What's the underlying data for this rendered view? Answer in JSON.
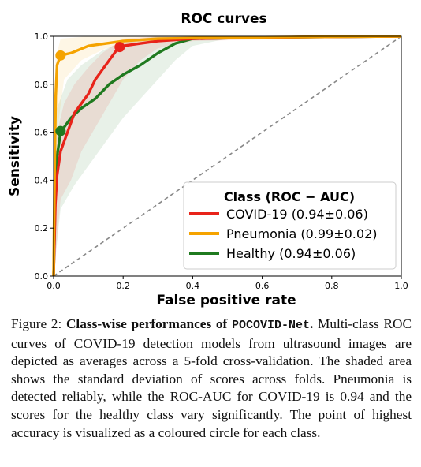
{
  "chart_data": {
    "type": "line",
    "title": "ROC curves",
    "xlabel": "False positive rate",
    "ylabel": "Sensitivity",
    "xlim": [
      0,
      1
    ],
    "ylim": [
      0,
      1
    ],
    "x_ticks": [
      "0.0",
      "0.2",
      "0.4",
      "0.6",
      "0.8",
      "1.0"
    ],
    "y_ticks": [
      "0.0",
      "0.2",
      "0.4",
      "0.6",
      "0.8",
      "1.0"
    ],
    "grid": false,
    "legend": {
      "title": "Class (ROC − AUC)",
      "placement": "lower-right"
    },
    "colors": {
      "covid": "#e8231a",
      "pneumonia": "#f5a300",
      "healthy": "#1f7a1f",
      "diagonal": "#888888"
    },
    "series": [
      {
        "name": "COVID-19 (0.94±0.06)",
        "color": "#e8231a",
        "points": [
          [
            0,
            0
          ],
          [
            0.005,
            0.3
          ],
          [
            0.01,
            0.42
          ],
          [
            0.02,
            0.52
          ],
          [
            0.04,
            0.6
          ],
          [
            0.06,
            0.68
          ],
          [
            0.08,
            0.72
          ],
          [
            0.1,
            0.76
          ],
          [
            0.12,
            0.82
          ],
          [
            0.14,
            0.86
          ],
          [
            0.16,
            0.9
          ],
          [
            0.18,
            0.94
          ],
          [
            0.2,
            0.96
          ],
          [
            0.25,
            0.97
          ],
          [
            0.3,
            0.98
          ],
          [
            0.4,
            0.99
          ],
          [
            0.6,
            0.995
          ],
          [
            1.0,
            1.0
          ]
        ],
        "band_upper": [
          [
            0,
            0.05
          ],
          [
            0.01,
            0.6
          ],
          [
            0.03,
            0.72
          ],
          [
            0.06,
            0.8
          ],
          [
            0.1,
            0.87
          ],
          [
            0.14,
            0.93
          ],
          [
            0.2,
            0.99
          ],
          [
            0.3,
            1.0
          ],
          [
            1.0,
            1.0
          ]
        ],
        "band_lower": [
          [
            0,
            0
          ],
          [
            0.02,
            0.32
          ],
          [
            0.05,
            0.4
          ],
          [
            0.08,
            0.52
          ],
          [
            0.12,
            0.62
          ],
          [
            0.16,
            0.72
          ],
          [
            0.2,
            0.82
          ],
          [
            0.25,
            0.9
          ],
          [
            0.3,
            0.95
          ],
          [
            0.4,
            0.98
          ],
          [
            1.0,
            1.0
          ]
        ],
        "best_point": [
          0.19,
          0.955
        ]
      },
      {
        "name": "Pneumonia (0.99±0.02)",
        "color": "#f5a300",
        "points": [
          [
            0,
            0
          ],
          [
            0.003,
            0.45
          ],
          [
            0.006,
            0.75
          ],
          [
            0.01,
            0.88
          ],
          [
            0.02,
            0.92
          ],
          [
            0.05,
            0.93
          ],
          [
            0.1,
            0.96
          ],
          [
            0.2,
            0.98
          ],
          [
            0.3,
            0.99
          ],
          [
            0.5,
            0.995
          ],
          [
            1.0,
            1.0
          ]
        ],
        "band_upper": [
          [
            0,
            0.1
          ],
          [
            0.005,
            0.9
          ],
          [
            0.02,
            0.99
          ],
          [
            0.1,
            1.0
          ],
          [
            1.0,
            1.0
          ]
        ],
        "band_lower": [
          [
            0,
            0
          ],
          [
            0.01,
            0.6
          ],
          [
            0.03,
            0.82
          ],
          [
            0.08,
            0.9
          ],
          [
            0.15,
            0.95
          ],
          [
            0.3,
            0.98
          ],
          [
            1.0,
            1.0
          ]
        ],
        "best_point": [
          0.02,
          0.92
        ]
      },
      {
        "name": "Healthy (0.94±0.06)",
        "color": "#1f7a1f",
        "points": [
          [
            0,
            0
          ],
          [
            0.005,
            0.35
          ],
          [
            0.01,
            0.5
          ],
          [
            0.02,
            0.6
          ],
          [
            0.05,
            0.66
          ],
          [
            0.08,
            0.7
          ],
          [
            0.12,
            0.74
          ],
          [
            0.16,
            0.8
          ],
          [
            0.2,
            0.84
          ],
          [
            0.25,
            0.88
          ],
          [
            0.3,
            0.93
          ],
          [
            0.35,
            0.97
          ],
          [
            0.4,
            0.99
          ],
          [
            0.6,
            0.995
          ],
          [
            1.0,
            1.0
          ]
        ],
        "band_upper": [
          [
            0,
            0.05
          ],
          [
            0.01,
            0.7
          ],
          [
            0.04,
            0.82
          ],
          [
            0.08,
            0.88
          ],
          [
            0.14,
            0.94
          ],
          [
            0.2,
            0.98
          ],
          [
            0.3,
            1.0
          ],
          [
            1.0,
            1.0
          ]
        ],
        "band_lower": [
          [
            0,
            0
          ],
          [
            0.02,
            0.28
          ],
          [
            0.06,
            0.38
          ],
          [
            0.1,
            0.46
          ],
          [
            0.15,
            0.56
          ],
          [
            0.2,
            0.66
          ],
          [
            0.25,
            0.74
          ],
          [
            0.3,
            0.82
          ],
          [
            0.35,
            0.9
          ],
          [
            0.4,
            0.96
          ],
          [
            0.5,
            0.99
          ],
          [
            1.0,
            1.0
          ]
        ],
        "best_point": [
          0.02,
          0.605
        ]
      }
    ],
    "diagonal": [
      [
        0,
        0
      ],
      [
        1,
        1
      ]
    ]
  },
  "caption": {
    "prefix": "Figure 2: ",
    "lead": "Class-wise performances of ",
    "model": "POCOVID-Net",
    "lead_end": ".",
    "body": " Multi-class ROC curves of COVID-19 detection models from ultrasound images are depicted as averages across a 5-fold cross-validation. The shaded area shows the standard deviation of scores across folds. Pneumonia is detected reliably, while the ROC-AUC for COVID-19 is 0.94 and the scores for the healthy class vary significantly. The point of highest accuracy is visualized as a coloured circle for each class."
  }
}
